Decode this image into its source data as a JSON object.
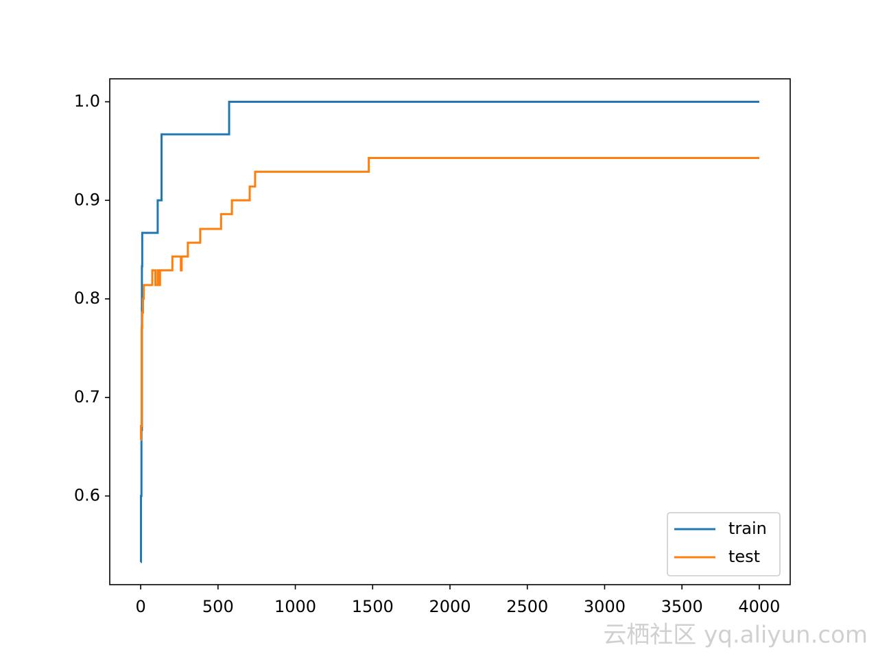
{
  "chart_data": {
    "type": "line",
    "xlim": [
      -200,
      4200
    ],
    "ylim": [
      0.51,
      1.0233
    ],
    "xticks": [
      0,
      500,
      1000,
      1500,
      2000,
      2500,
      3000,
      3500,
      4000
    ],
    "yticks": [
      0.6,
      0.7,
      0.8,
      0.9,
      {
        "value": 1,
        "label": "1.0"
      }
    ],
    "legend": "lower right",
    "series": [
      {
        "name": "train",
        "color": "#1f77b4",
        "x": [
          0,
          2,
          2,
          5,
          5,
          8,
          8,
          10,
          10,
          110,
          110,
          135,
          135,
          572,
          572,
          4000
        ],
        "values": [
          0.533,
          0.533,
          0.6,
          0.6,
          0.667,
          0.667,
          0.833,
          0.833,
          0.867,
          0.867,
          0.9,
          0.9,
          0.967,
          0.967,
          1.0,
          1.0
        ]
      },
      {
        "name": "test",
        "color": "#ff7f0e",
        "x": [
          0,
          2,
          2,
          6,
          6,
          10,
          10,
          15,
          15,
          20,
          20,
          75,
          75,
          95,
          95,
          110,
          110,
          120,
          120,
          125,
          125,
          205,
          205,
          260,
          260,
          265,
          265,
          305,
          305,
          385,
          385,
          520,
          520,
          590,
          590,
          705,
          705,
          740,
          740,
          1475,
          1475,
          4000
        ],
        "values": [
          0.657,
          0.657,
          0.671,
          0.671,
          0.771,
          0.771,
          0.786,
          0.786,
          0.8,
          0.8,
          0.814,
          0.814,
          0.829,
          0.829,
          0.814,
          0.814,
          0.829,
          0.829,
          0.814,
          0.814,
          0.829,
          0.829,
          0.843,
          0.843,
          0.829,
          0.829,
          0.843,
          0.843,
          0.857,
          0.857,
          0.871,
          0.871,
          0.886,
          0.886,
          0.9,
          0.9,
          0.914,
          0.914,
          0.929,
          0.929,
          0.943,
          0.943
        ]
      }
    ],
    "watermark": "云栖社区 yq.aliyun.com"
  }
}
